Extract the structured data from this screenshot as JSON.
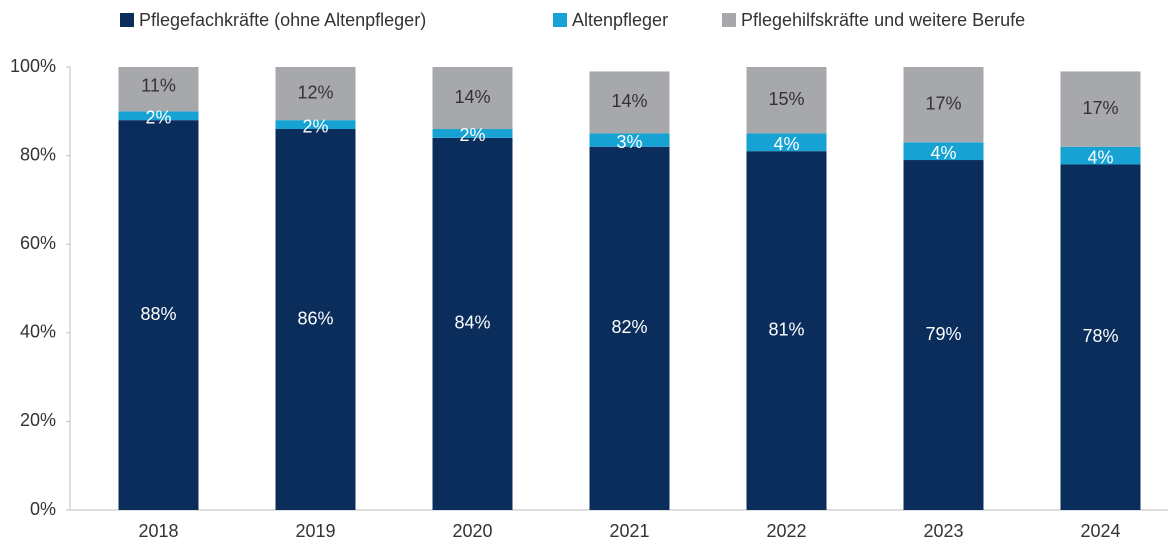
{
  "chart_data": {
    "type": "stacked_bar",
    "categories": [
      "2018",
      "2019",
      "2020",
      "2021",
      "2022",
      "2023",
      "2024"
    ],
    "series": [
      {
        "name": "Pflegefachkräfte (ohne Altenpfleger)",
        "color": "#0b2d5b",
        "values": [
          88,
          86,
          84,
          82,
          81,
          79,
          78
        ],
        "value_labels": [
          "88%",
          "86%",
          "84%",
          "82%",
          "81%",
          "79%",
          "78%"
        ]
      },
      {
        "name": "Altenpfleger",
        "color": "#17a2d4",
        "values": [
          2,
          2,
          2,
          3,
          4,
          4,
          4
        ],
        "value_labels": [
          "2%",
          "2%",
          "2%",
          "3%",
          "4%",
          "4%",
          "4%"
        ]
      },
      {
        "name": "Pflegehilfskräfte und weitere Berufe",
        "color": "#a6a8ab",
        "values": [
          11,
          12,
          14,
          14,
          15,
          17,
          17
        ],
        "value_labels": [
          "11%",
          "12%",
          "14%",
          "14%",
          "15%",
          "17%",
          "17%"
        ]
      }
    ],
    "ylim": [
      0,
      100
    ],
    "yticks": [
      {
        "value": 0,
        "label": "0%"
      },
      {
        "value": 20,
        "label": "20%"
      },
      {
        "value": 40,
        "label": "40%"
      },
      {
        "value": 60,
        "label": "60%"
      },
      {
        "value": 80,
        "label": "80%"
      },
      {
        "value": 100,
        "label": "100%"
      }
    ],
    "legend": "top"
  }
}
